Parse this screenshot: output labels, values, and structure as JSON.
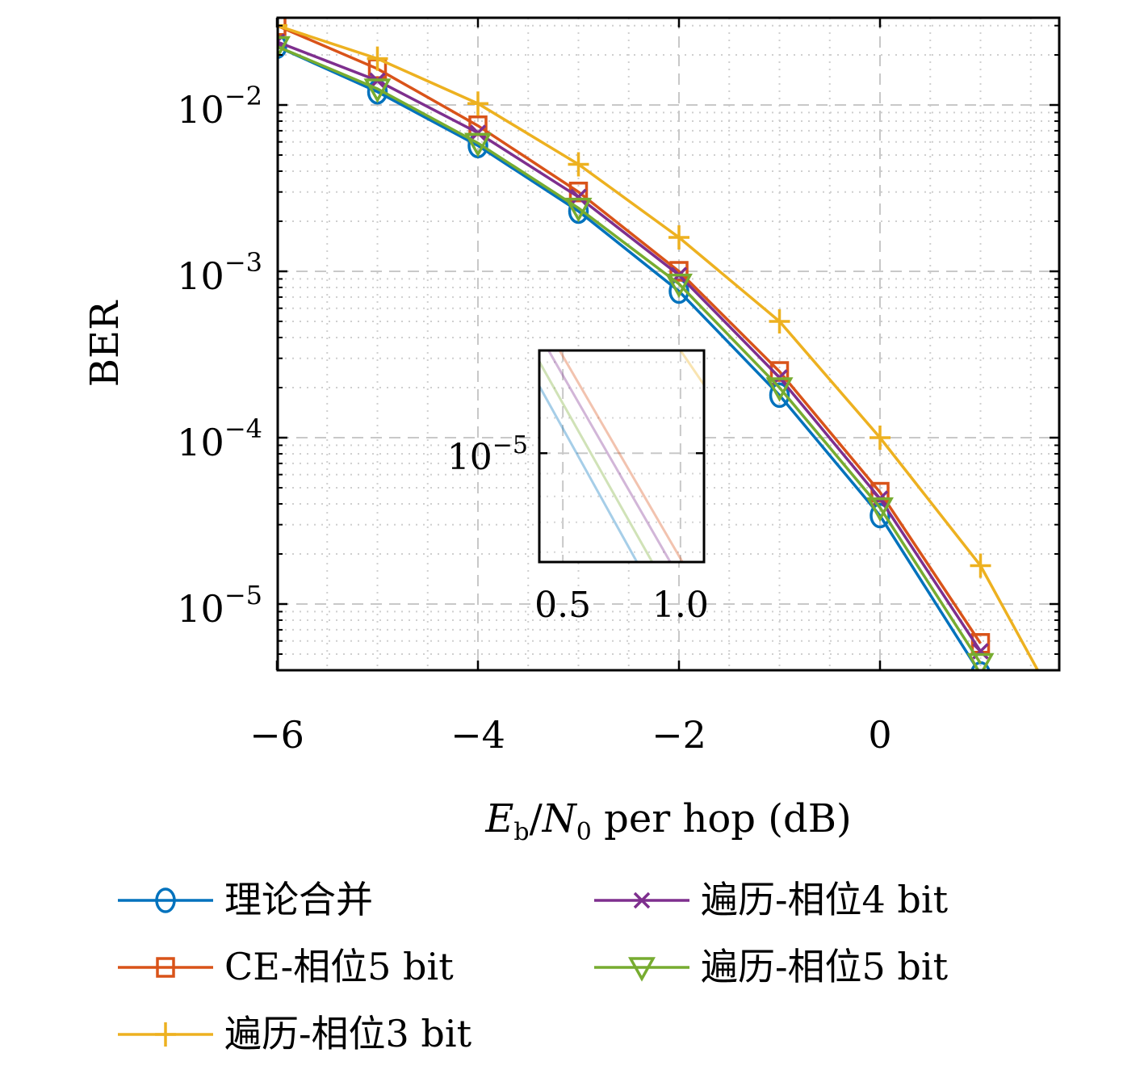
{
  "chart_data": {
    "type": "line",
    "xlabel_parts": {
      "e": "E",
      "e_sub": "b",
      "slash": "/",
      "n": "N",
      "n_sub": "0",
      "rest": " per hop (dB)"
    },
    "ylabel": "BER",
    "xlim": [
      -6,
      1.8
    ],
    "ylim": [
      3.6e-06,
      0.03
    ],
    "y_scale": "log",
    "grid": true,
    "x_ticks": [
      {
        "value": -6,
        "label": "−6"
      },
      {
        "value": -4,
        "label": "−4"
      },
      {
        "value": -2,
        "label": "−2"
      },
      {
        "value": 0,
        "label": "0"
      }
    ],
    "y_ticks": [
      {
        "value": 0.01,
        "base": "10",
        "exp": "−2"
      },
      {
        "value": 0.001,
        "base": "10",
        "exp": "−3"
      },
      {
        "value": 0.0001,
        "base": "10",
        "exp": "−4"
      },
      {
        "value": 1e-05,
        "base": "10",
        "exp": "−5"
      }
    ],
    "series": [
      {
        "name": "理论合并",
        "color": "#0072BD",
        "marker": "circle",
        "x": [
          -6,
          -5,
          -4,
          -3,
          -2,
          -1,
          0,
          1
        ],
        "y": [
          0.0225,
          0.012,
          0.0057,
          0.0023,
          0.00076,
          0.00018,
          3.4e-05,
          3.8e-06
        ]
      },
      {
        "name": "CE-相位5 bit",
        "color": "#D95319",
        "marker": "square",
        "x": [
          -6,
          -5,
          -4,
          -3,
          -2,
          -1,
          0,
          1
        ],
        "y": [
          0.03,
          0.0165,
          0.0075,
          0.003,
          0.001,
          0.00025,
          4.7e-05,
          5.8e-06
        ]
      },
      {
        "name": "遍历-相位3 bit",
        "color": "#EDB120",
        "marker": "plus",
        "x": [
          -6,
          -5,
          -4,
          -3,
          -2,
          -1,
          0,
          1,
          1.6
        ],
        "y": [
          0.03,
          0.019,
          0.0102,
          0.0044,
          0.0016,
          0.0005,
          0.0001,
          1.7e-05,
          3.7e-06
        ],
        "marker_count": 8
      },
      {
        "name": "遍历-相位4 bit",
        "color": "#7E2F8E",
        "marker": "x",
        "x": [
          -6,
          -5,
          -4,
          -3,
          -2,
          -1,
          0,
          1
        ],
        "y": [
          0.024,
          0.014,
          0.0068,
          0.0028,
          0.00095,
          0.00023,
          4.3e-05,
          5.2e-06
        ]
      },
      {
        "name": "遍历-相位5 bit",
        "color": "#77AC30",
        "marker": "triangle-down",
        "x": [
          -6,
          -5,
          -4,
          -3,
          -2,
          -1,
          0,
          1
        ],
        "y": [
          0.0225,
          0.0125,
          0.0059,
          0.0024,
          0.00084,
          0.0002,
          3.8e-05,
          4.4e-06
        ]
      }
    ],
    "legend": {
      "placement": "below",
      "columns": 2
    },
    "inset": {
      "x_ticks": [
        {
          "value": 0.5,
          "label": "0.5"
        },
        {
          "value": 1.0,
          "label": "1.0"
        }
      ],
      "y_tick": {
        "base": "10",
        "exp": "−5"
      },
      "xlim": [
        0.4,
        1.1
      ],
      "ylim": [
        1.7e-05,
        5.7e-06
      ]
    }
  }
}
